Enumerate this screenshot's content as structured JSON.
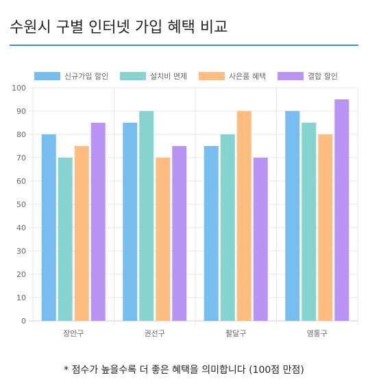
{
  "page": {
    "title": "수원시 구별 인터넷 가입 혜택 비교",
    "footnote": "* 점수가 높을수록 더 좋은 혜택을 의미합니다 (100점 만점)"
  },
  "chart_data": {
    "type": "bar",
    "categories": [
      "장안구",
      "권선구",
      "팔달구",
      "영통구"
    ],
    "series": [
      {
        "name": "신규가입 할인",
        "color": "#77bdf0",
        "values": [
          80,
          85,
          75,
          90
        ]
      },
      {
        "name": "설치비 면제",
        "color": "#86d3d0",
        "values": [
          70,
          90,
          80,
          85
        ]
      },
      {
        "name": "사은품 혜택",
        "color": "#ffbd80",
        "values": [
          75,
          70,
          90,
          80
        ]
      },
      {
        "name": "결합 할인",
        "color": "#b994f5",
        "values": [
          85,
          75,
          70,
          95
        ]
      }
    ],
    "ylim": [
      0,
      100
    ],
    "yticks": [
      0,
      10,
      20,
      30,
      40,
      50,
      60,
      70,
      80,
      90,
      100
    ],
    "grid": true,
    "legend": "top"
  }
}
